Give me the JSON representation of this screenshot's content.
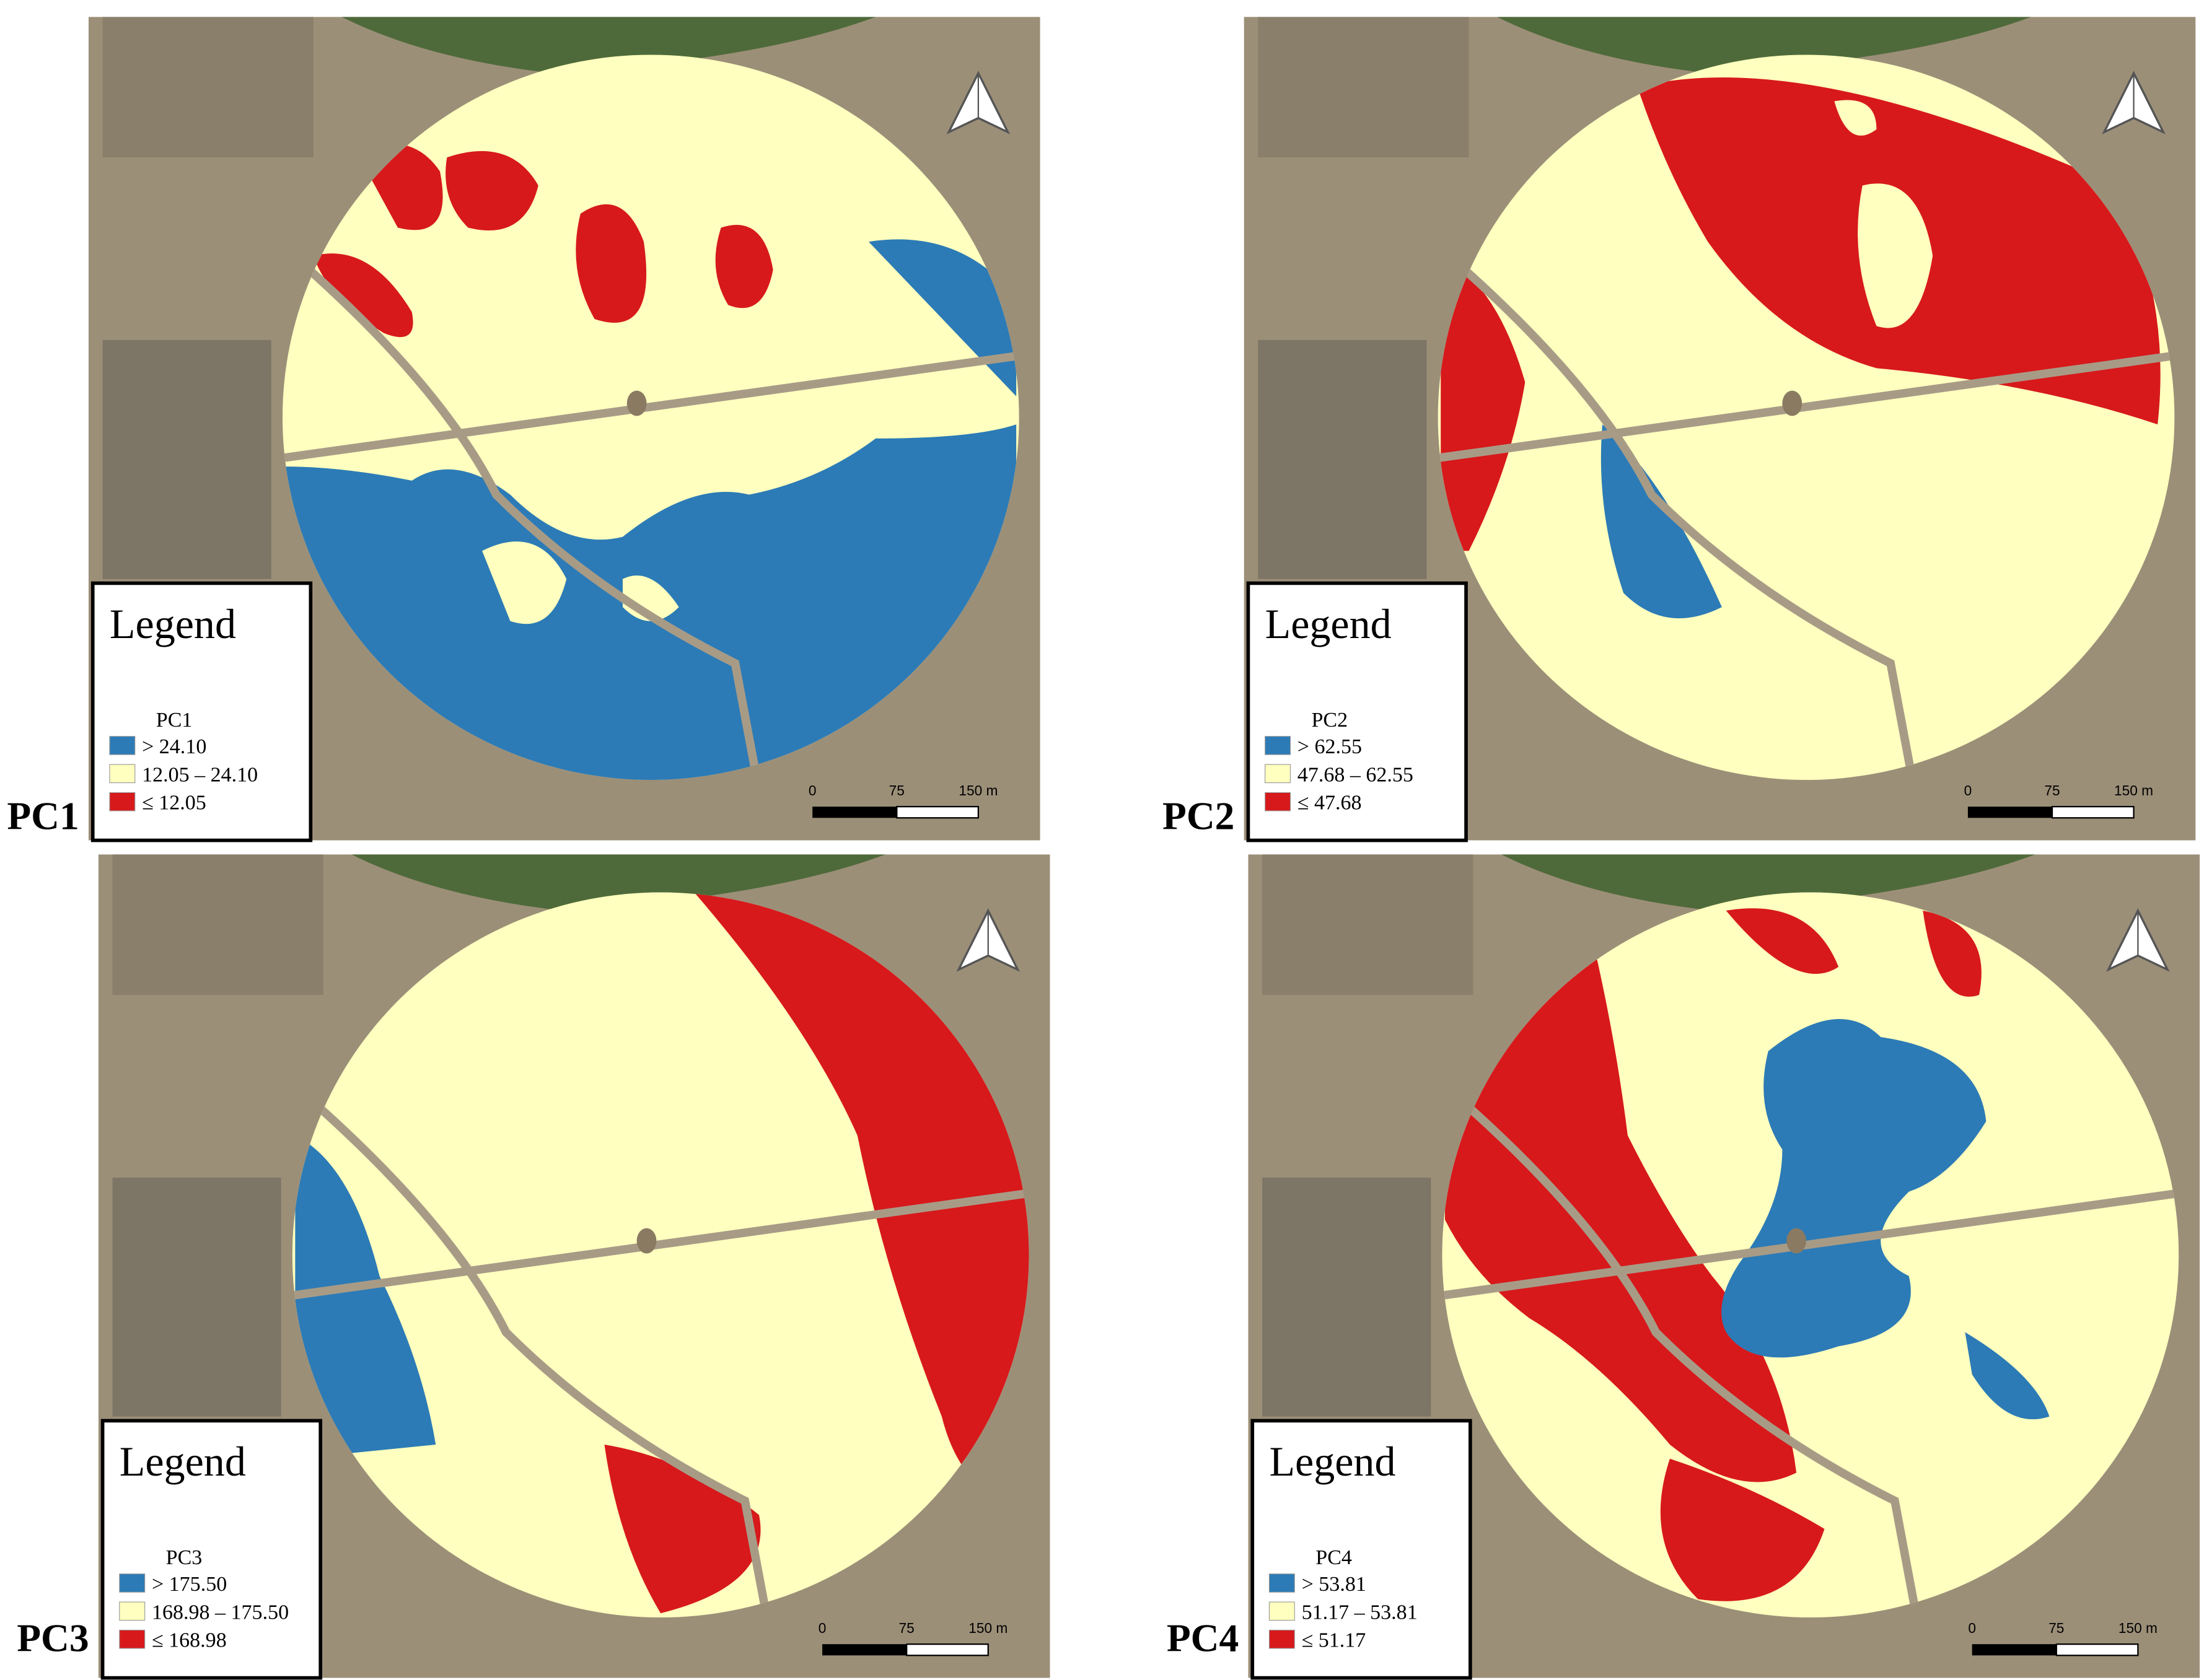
{
  "panels": [
    {
      "label": "PC1",
      "legend": {
        "title": "Legend",
        "layer": "PC1",
        "items": [
          "> 24.10",
          "12.05 – 24.10",
          "≤ 12.05"
        ]
      },
      "scale": [
        "0",
        "75",
        "150 m"
      ]
    },
    {
      "label": "PC2",
      "legend": {
        "title": "Legend",
        "layer": "PC2",
        "items": [
          "> 62.55",
          "47.68 – 62.55",
          "≤ 47.68"
        ]
      },
      "scale": [
        "0",
        "75",
        "150 m"
      ]
    },
    {
      "label": "PC3",
      "legend": {
        "title": "Legend",
        "layer": "PC3",
        "items": [
          "> 175.50",
          "168.98 – 175.50",
          "≤ 168.98"
        ]
      },
      "scale": [
        "0",
        "75",
        "150 m"
      ]
    },
    {
      "label": "PC4",
      "legend": {
        "title": "Legend",
        "layer": "PC4",
        "items": [
          "> 53.81",
          "51.17 – 53.81",
          "≤ 51.17"
        ]
      },
      "scale": [
        "0",
        "75",
        "150 m"
      ]
    }
  ]
}
